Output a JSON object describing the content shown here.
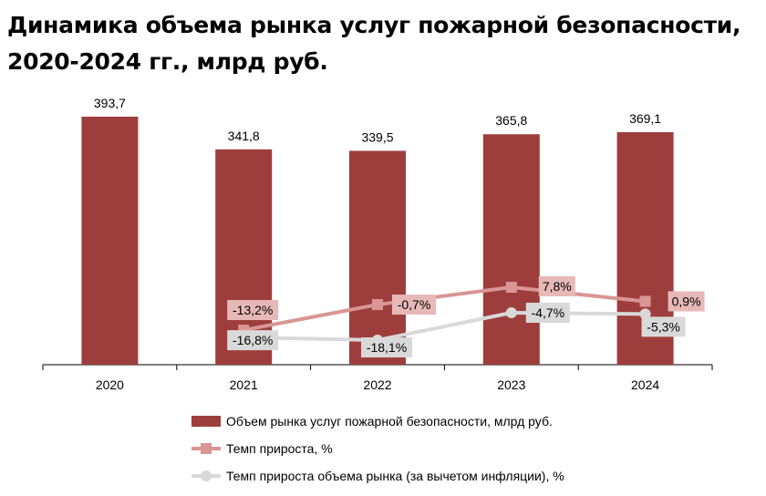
{
  "chart_data": {
    "type": "bar",
    "title": "Динамика объема рынка услуг пожарной безопасности, 2020-2024 гг., млрд руб.",
    "categories": [
      "2020",
      "2021",
      "2022",
      "2023",
      "2024"
    ],
    "series": [
      {
        "name": "Объем рынка услуг пожарной безопасности, млрд руб.",
        "type": "bar",
        "color": "#9e3e3c",
        "values": [
          393.7,
          341.8,
          339.5,
          365.8,
          369.1
        ],
        "labels": [
          "393,7",
          "341,8",
          "339,5",
          "365,8",
          "369,1"
        ]
      },
      {
        "name": "Темп прироста, %",
        "type": "line",
        "marker": "square",
        "color": "#d99694",
        "label_bg": "#e6b9b8",
        "values": [
          null,
          -13.2,
          -0.7,
          7.8,
          0.9
        ],
        "labels": [
          "",
          "-13,2%",
          "-0,7%",
          "7,8%",
          "0,9%"
        ]
      },
      {
        "name": "Темп прироста объема рынка (за вычетом инфляции), %",
        "type": "line",
        "marker": "circle",
        "color": "#d9d9d9",
        "label_bg": "#d9d9d9",
        "values": [
          null,
          -16.8,
          -18.1,
          -4.7,
          -5.3
        ],
        "labels": [
          "",
          "-16,8%",
          "-18,1%",
          "-4,7%",
          "-5,3%"
        ]
      }
    ],
    "legend": "bottom"
  }
}
